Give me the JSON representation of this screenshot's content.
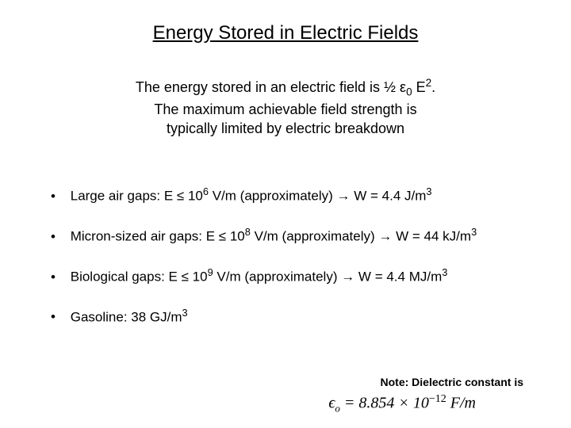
{
  "title": "Energy Stored in Electric Fields",
  "summary": {
    "line1_pre": "The energy stored in an electric field is ½ ε",
    "line1_sub": "0",
    "line1_mid": " E",
    "line1_sup": "2",
    "line1_post": ".",
    "line2": "The maximum achievable field strength is",
    "line3": "typically limited by electric breakdown"
  },
  "bullets": [
    {
      "label": "Large air gaps:  E ≤ 10",
      "exp": "6",
      "mid": " V/m  (approximately)   →   W = 4.4 J/m",
      "exp2": "3"
    },
    {
      "label": "Micron-sized air gaps:  E ≤ 10",
      "exp": "8",
      "mid": " V/m  (approximately)  →  W = 44 kJ/m",
      "exp2": "3"
    },
    {
      "label": "Biological gaps:  E ≤ 10",
      "exp": "9",
      "mid": " V/m  (approximately)  →  W = 4.4 MJ/m",
      "exp2": "3"
    },
    {
      "label": "Gasoline:  38 GJ/m",
      "exp": "3",
      "mid": "",
      "exp2": ""
    }
  ],
  "note": "Note: Dielectric constant is",
  "formula": {
    "lhs": "ϵ",
    "sub": "o",
    "eq": " = 8.854 × 10",
    "sup": "−12",
    "unit": " F/m"
  },
  "colors": {
    "background": "#ffffff",
    "text": "#000000"
  },
  "fontsizes": {
    "title": 24,
    "summary": 18,
    "bullet": 17,
    "note": 14,
    "formula": 20
  }
}
